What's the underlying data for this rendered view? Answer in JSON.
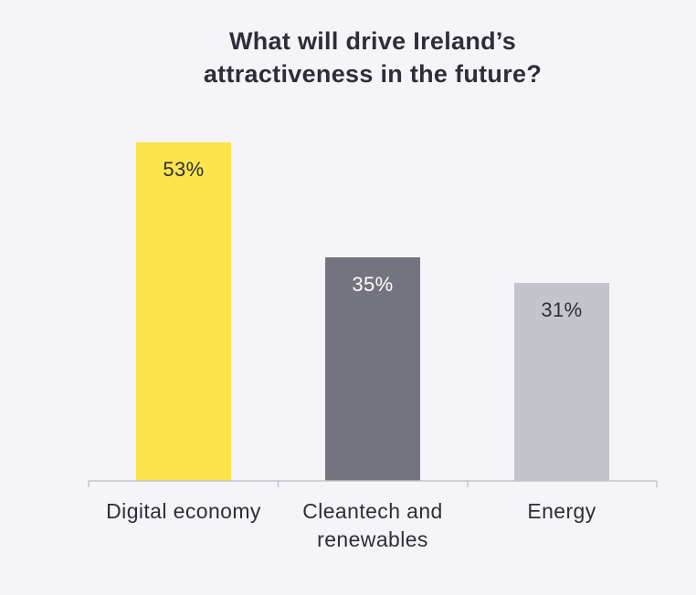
{
  "chart_data": {
    "type": "bar",
    "title_lines": [
      "What will drive Ireland’s",
      "attractiveness in the future?"
    ],
    "categories": [
      [
        "Digital economy"
      ],
      [
        "Cleantech and",
        "renewables"
      ],
      [
        "Energy"
      ]
    ],
    "values": [
      53,
      35,
      31
    ],
    "value_labels": [
      "53%",
      "35%",
      "31%"
    ],
    "colors": [
      "#fbe44c",
      "#747480",
      "#c4c4cd"
    ],
    "label_colors": [
      "#2e2e38",
      "#ffffff",
      "#2e2e38"
    ],
    "axis_color": "#c4c4cd",
    "ylim": [
      0,
      53
    ],
    "grid": false,
    "legend": "none"
  }
}
